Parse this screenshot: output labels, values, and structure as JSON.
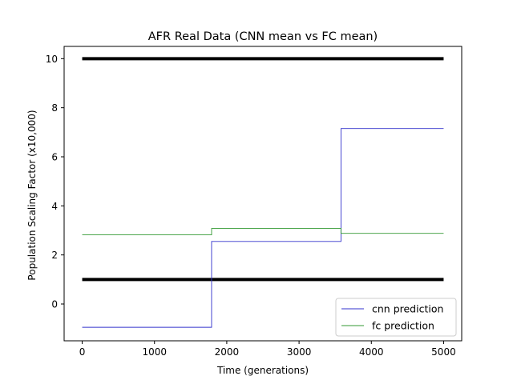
{
  "chart_data": {
    "type": "line",
    "title": "AFR Real Data (CNN mean vs FC mean)",
    "xlabel": "Time (generations)",
    "ylabel": "Population Scaling Factor (x10,000)",
    "xlim": [
      -250,
      5250
    ],
    "ylim": [
      -1.5,
      10.5
    ],
    "xticks": [
      0,
      1000,
      2000,
      3000,
      4000,
      5000
    ],
    "yticks": [
      0,
      2,
      4,
      6,
      8,
      10
    ],
    "grid": false,
    "legend_position": "lower right",
    "reference_lines": [
      {
        "y": 10,
        "x": [
          0,
          5000
        ],
        "color": "#000000"
      },
      {
        "y": 1,
        "x": [
          0,
          5000
        ],
        "color": "#000000"
      }
    ],
    "series": [
      {
        "name": "cnn prediction",
        "color": "#3333cc",
        "step": true,
        "x": [
          0,
          1790,
          1790,
          3580,
          3580,
          5000
        ],
        "y": [
          -0.95,
          -0.95,
          2.55,
          2.55,
          7.15,
          7.15
        ]
      },
      {
        "name": "fc prediction",
        "color": "#339933",
        "step": true,
        "x": [
          0,
          1790,
          1790,
          3580,
          3580,
          5000
        ],
        "y": [
          2.82,
          2.82,
          3.08,
          3.08,
          2.88,
          2.88
        ]
      }
    ]
  }
}
